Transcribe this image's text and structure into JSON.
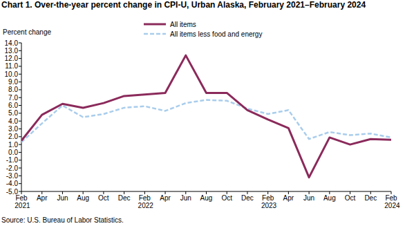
{
  "chart_data": {
    "type": "line",
    "title": "Chart 1. Over-the-year percent change in CPI-U, Urban Alaska, February 2021–February 2024",
    "y_label": "Percent change",
    "source": "Source: U.S. Bureau of Labor Statistics.",
    "categories": [
      "Feb 2021",
      "Apr",
      "Jun",
      "Aug",
      "Oct",
      "Dec",
      "Feb 2022",
      "Apr",
      "Jun",
      "Aug",
      "Oct",
      "Dec",
      "Feb 2023",
      "Apr",
      "Jun",
      "Aug",
      "Oct",
      "Dec",
      "Feb 2024"
    ],
    "series": [
      {
        "name": "All items",
        "color": "#8b2a5b",
        "line_style": "solid",
        "values": [
          1.5,
          4.8,
          6.2,
          5.7,
          6.3,
          7.2,
          7.4,
          7.6,
          12.4,
          7.6,
          7.6,
          5.4,
          4.2,
          3.1,
          -3.2,
          1.9,
          1.0,
          1.7,
          1.6
        ]
      },
      {
        "name": "All items less food and energy",
        "color": "#a9cdec",
        "line_style": "dashed",
        "values": [
          1.3,
          3.7,
          6.0,
          4.5,
          4.9,
          5.7,
          5.9,
          5.3,
          6.3,
          6.7,
          6.6,
          5.6,
          4.9,
          5.4,
          1.7,
          2.6,
          2.2,
          2.4,
          1.9
        ]
      }
    ],
    "ylim": [
      -5,
      14
    ],
    "yticks": [
      {
        "value": 14,
        "label": "14.0"
      },
      {
        "value": 13,
        "label": "13.0"
      },
      {
        "value": 12,
        "label": "12.0"
      },
      {
        "value": 11,
        "label": "11.0"
      },
      {
        "value": 10,
        "label": "10.0"
      },
      {
        "value": 9,
        "label": "9.0"
      },
      {
        "value": 8,
        "label": "8.0"
      },
      {
        "value": 7,
        "label": "7.0"
      },
      {
        "value": 6,
        "label": "6.0"
      },
      {
        "value": 5,
        "label": "5.0"
      },
      {
        "value": 4,
        "label": "4.0"
      },
      {
        "value": 3,
        "label": "3.0"
      },
      {
        "value": 2,
        "label": "2.0"
      },
      {
        "value": 1,
        "label": "1.0"
      },
      {
        "value": 0,
        "label": "0.0"
      },
      {
        "value": -1,
        "label": "-1.0"
      },
      {
        "value": -2,
        "label": "-2.0"
      },
      {
        "value": -3,
        "label": "-3.0"
      },
      {
        "value": -4,
        "label": "-4.0"
      },
      {
        "value": -5,
        "label": "-5.0"
      }
    ],
    "grid": false,
    "legend": "top"
  }
}
